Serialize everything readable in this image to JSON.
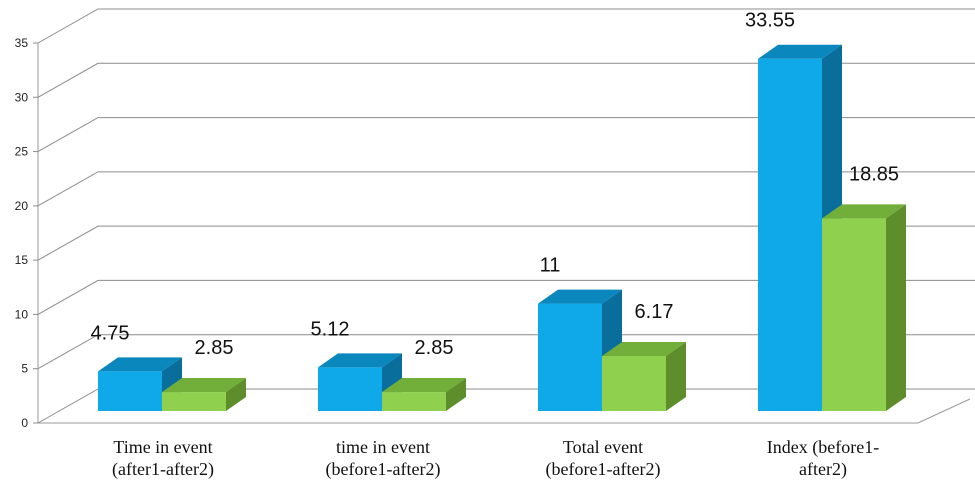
{
  "chart_data": {
    "type": "bar",
    "title": "",
    "xlabel": "",
    "ylabel": "",
    "ylim": [
      0,
      35
    ],
    "yticks": [
      0,
      5,
      10,
      15,
      20,
      25,
      30,
      35
    ],
    "grid": true,
    "legend": "none",
    "style": "3d-clustered-column",
    "categories": [
      [
        "Time in event",
        "(after1-after2)"
      ],
      [
        "time in event",
        "(before1-after2)"
      ],
      [
        "Total event",
        "(before1-after2)"
      ],
      [
        "Index (before1-",
        "after2)"
      ]
    ],
    "series": [
      {
        "values": [
          4.75,
          5.12,
          11,
          33.55
        ],
        "labels": [
          "4.75",
          "5.12",
          "11",
          "33.55"
        ],
        "color": "#0FA8E8",
        "top_color": "#0A88BE",
        "side_color": "#0A6E9C"
      },
      {
        "values": [
          2.85,
          2.85,
          6.17,
          18.85
        ],
        "labels": [
          "2.85",
          "2.85",
          "6.17",
          "18.85"
        ],
        "color": "#8FD14F",
        "top_color": "#72AE3A",
        "side_color": "#5E8E2C"
      }
    ]
  }
}
